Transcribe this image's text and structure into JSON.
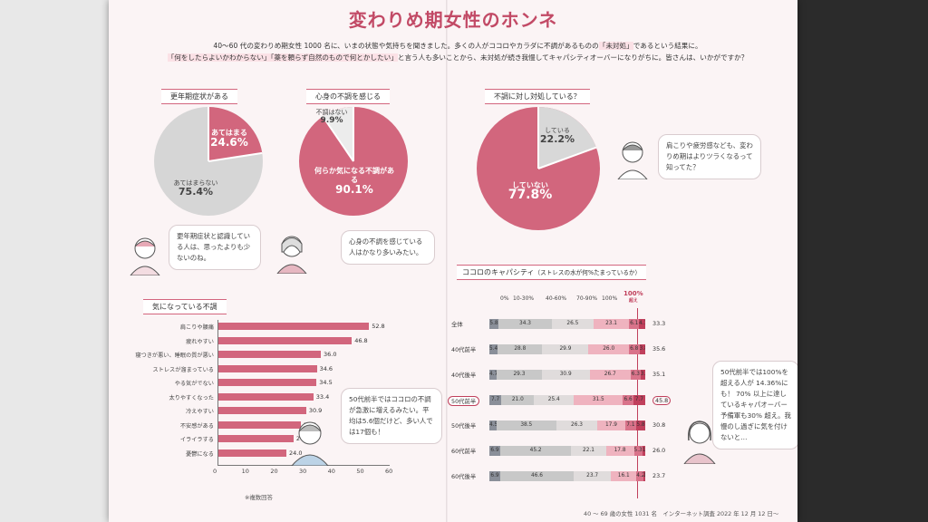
{
  "title": "変わりめ期女性のホンネ",
  "intro": {
    "line1_a": "40～60 代の変わりめ期女性 1000 名に、いまの状態や気持ちを聞きました。多くの人がココロやカラダに不調があるものの",
    "line1_hl": "「未対処」",
    "line1_b": "であるという結果に。",
    "line2_hl": "「何をしたらよいかわからない」「薬を頼らず自然のもので何とかしたい」",
    "line2_b": "と言う人も多いことから、未対処が続き我慢してキャパシティオーバーになりがちに。皆さんは、いかがですか？"
  },
  "pie1": {
    "tag": "更年期症状がある",
    "yes_label": "あてはまる",
    "yes_value": "24.6%",
    "no_label": "あてはまらない",
    "no_value": "75.4%",
    "bubble": "更年期症状と認識している人は、思ったよりも少ないのね。"
  },
  "pie2": {
    "tag": "心身の不調を感じる",
    "no_label": "不調はない",
    "no_value": "9.9%",
    "yes_label": "何らか気になる不調がある",
    "yes_value": "90.1%",
    "bubble": "心身の不調を感じている人はかなり多いみたい。"
  },
  "pie3": {
    "tag": "不調に対し対処している？",
    "yes_label": "している",
    "yes_value": "22.2%",
    "no_label": "していない",
    "no_value": "77.8%",
    "bubble": "肩こりや疲労感なども、変わりめ期はよりツラくなるって知ってた？"
  },
  "chart_data": [
    {
      "type": "bar",
      "title": "気になっている不調",
      "categories": [
        "肩こりや腰痛",
        "疲れやすい",
        "寝つきが悪い、睡眠の質が悪い",
        "ストレスが溜まっている",
        "やる気がでない",
        "太りやすくなった",
        "冷えやすい",
        "不安感がある",
        "イライラする",
        "憂鬱になる"
      ],
      "values": [
        52.8,
        46.8,
        36.0,
        34.6,
        34.5,
        33.4,
        30.9,
        29.0,
        26.5,
        24.0
      ],
      "value_labels": [
        "52.8",
        "46.8",
        "36.0",
        "34.6",
        "34.5",
        "33.4",
        "30.9",
        "29.0",
        "26.5",
        "24.0"
      ],
      "xlim": [
        0,
        60
      ],
      "ticks": [
        "0",
        "10",
        "20",
        "30",
        "40",
        "50",
        "60"
      ],
      "note": "※複数回答",
      "color": "#d2667d"
    },
    {
      "type": "bar",
      "title": "ココロのキャパシティ",
      "subtitle": "（ストレスの水が何%たまっているか）",
      "stacked": true,
      "columns": [
        "0%",
        "10-30%",
        "40-60%",
        "70-90%",
        "100%"
      ],
      "over_label": "100%",
      "over_sub": "超え",
      "colors": [
        "#8a8f99",
        "#c8c8c8",
        "#e0dcdc",
        "#efb3bf",
        "#d9738a",
        "#c0405c"
      ],
      "rows": [
        {
          "label": "全体",
          "values": [
            5.8,
            34.3,
            26.5,
            23.1,
            6.1,
            4.1
          ],
          "labels": [
            "5.8",
            "34.3",
            "26.5",
            "23.1",
            "6.1",
            "4.1"
          ],
          "side": "33.3"
        },
        {
          "label": "40代前半",
          "values": [
            5.4,
            28.8,
            29.9,
            26.0,
            6.8,
            3.8
          ],
          "labels": [
            "5.4",
            "28.8",
            "29.9",
            "26.0",
            "6.8",
            "3.8"
          ],
          "side": "35.6"
        },
        {
          "label": "40代後半",
          "values": [
            4.7,
            29.3,
            30.9,
            26.7,
            6.3,
            3.1
          ],
          "labels": [
            "4.7",
            "29.3",
            "30.9",
            "26.7",
            "6.3",
            "3.1"
          ],
          "side": "35.1"
        },
        {
          "label": "50代前半",
          "values": [
            7.7,
            21.0,
            25.4,
            31.5,
            6.6,
            7.7
          ],
          "labels": [
            "7.7",
            "21.0",
            "25.4",
            "31.5",
            "6.6",
            "7.7"
          ],
          "side": "45.8",
          "highlight": true
        },
        {
          "label": "50代後半",
          "values": [
            4.5,
            38.5,
            26.3,
            17.9,
            7.1,
            5.8
          ],
          "labels": [
            "4.5",
            "38.5",
            "26.3",
            "17.9",
            "7.1",
            "5.8"
          ],
          "side": "30.8"
        },
        {
          "label": "60代前半",
          "values": [
            6.9,
            45.2,
            22.1,
            17.8,
            5.3,
            1.9
          ],
          "labels": [
            "6.9",
            "45.2",
            "22.1",
            "17.8",
            "5.3",
            "1.9"
          ],
          "side": "26.0"
        },
        {
          "label": "60代後半",
          "values": [
            6.9,
            46.6,
            23.7,
            16.1,
            4.2,
            1.4
          ],
          "labels": [
            "6.9",
            "46.6",
            "23.7",
            "16.1",
            "4.2",
            "1.4"
          ],
          "side": "23.7"
        }
      ]
    }
  ],
  "bubble_left_chart": "50代前半ではココロの不調が急激に増えるみたい。平均は5.6個だけど、多い人では17個も！",
  "bubble_right_chart": "50代前半では100%を超える人が 14.36%にも！ 70% 以上に達しているキャパオーバー予備軍も30% 超え。我慢のし過ぎに気を付けないと…",
  "footer": "40 ～ 69 歳の女性 1031 名　インターネット調査 2022 年 12 月 12 日～"
}
